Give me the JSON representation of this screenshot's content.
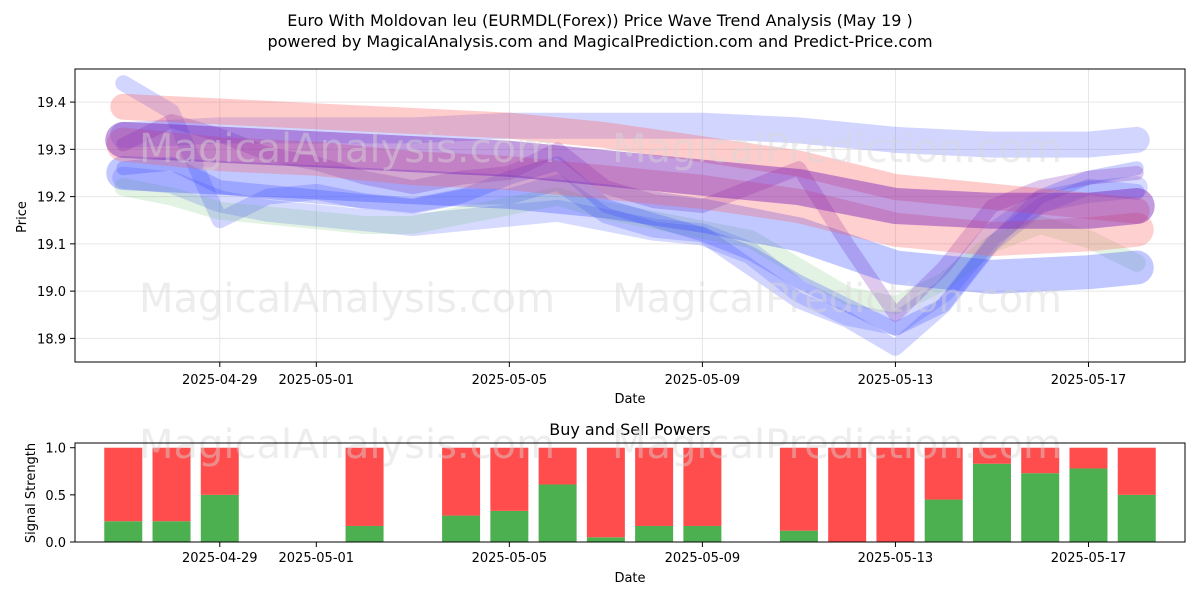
{
  "header": {
    "title": "Euro With Moldovan leu (EURMDL(Forex)) Price Wave Trend Analysis (May 19 )",
    "subtitle": "powered by MagicalAnalysis.com and MagicalPrediction.com and Predict-Price.com"
  },
  "watermarks": [
    "MagicalAnalysis.com",
    "MagicalPrediction.com"
  ],
  "colors": {
    "buy": "#4caf50",
    "sell": "#ff4d4d",
    "wave_blue": "#3344ff",
    "wave_red": "#ff5555",
    "wave_green": "#66bb66",
    "wave_purple": "#7a22b8"
  },
  "chart_data": [
    {
      "type": "line",
      "title": "",
      "xlabel": "Date",
      "ylabel": "Price",
      "x_ticks": [
        "2025-04-29",
        "2025-05-01",
        "2025-05-05",
        "2025-05-09",
        "2025-05-13",
        "2025-05-17"
      ],
      "y_ticks": [
        18.9,
        19.0,
        19.1,
        19.2,
        19.3,
        19.4
      ],
      "xlim": [
        "2025-04-26",
        "2025-05-19"
      ],
      "ylim": [
        18.85,
        19.47
      ],
      "grid": true,
      "series": [
        {
          "color": "blue",
          "width": 16,
          "opacity": 0.22,
          "x": [
            "2025-04-27",
            "2025-04-28",
            "2025-04-29",
            "2025-04-30",
            "2025-05-01",
            "2025-05-02",
            "2025-05-03",
            "2025-05-04",
            "2025-05-05",
            "2025-05-06",
            "2025-05-07",
            "2025-05-08",
            "2025-05-09",
            "2025-05-10",
            "2025-05-11",
            "2025-05-12",
            "2025-05-13",
            "2025-05-14",
            "2025-05-15",
            "2025-05-16",
            "2025-05-17",
            "2025-05-18"
          ],
          "y": [
            19.44,
            19.38,
            19.15,
            19.2,
            19.21,
            19.19,
            19.18,
            19.2,
            19.2,
            19.23,
            19.16,
            19.13,
            19.12,
            19.05,
            18.98,
            18.94,
            18.88,
            18.97,
            19.1,
            19.18,
            19.22,
            19.21
          ]
        },
        {
          "color": "blue",
          "width": 22,
          "opacity": 0.2,
          "x": [
            "2025-04-27",
            "2025-04-28",
            "2025-04-29",
            "2025-04-30",
            "2025-05-01",
            "2025-05-02",
            "2025-05-03",
            "2025-05-04",
            "2025-05-05",
            "2025-05-06",
            "2025-05-07",
            "2025-05-08",
            "2025-05-09",
            "2025-05-10",
            "2025-05-11",
            "2025-05-12",
            "2025-05-13",
            "2025-05-14",
            "2025-05-15",
            "2025-05-16",
            "2025-05-17",
            "2025-05-18"
          ],
          "y": [
            19.24,
            19.23,
            19.19,
            19.17,
            19.16,
            19.15,
            19.14,
            19.15,
            19.16,
            19.17,
            19.15,
            19.13,
            19.12,
            19.08,
            19.0,
            18.95,
            18.93,
            19.0,
            19.12,
            19.19,
            19.21,
            19.22
          ]
        },
        {
          "color": "green",
          "width": 18,
          "opacity": 0.18,
          "x": [
            "2025-04-27",
            "2025-04-28",
            "2025-04-29",
            "2025-04-30",
            "2025-05-01",
            "2025-05-02",
            "2025-05-03",
            "2025-05-04",
            "2025-05-05",
            "2025-05-06",
            "2025-05-07",
            "2025-05-08",
            "2025-05-09",
            "2025-05-10",
            "2025-05-11",
            "2025-05-12",
            "2025-05-13",
            "2025-05-14",
            "2025-05-15",
            "2025-05-16",
            "2025-05-17",
            "2025-05-18"
          ],
          "y": [
            19.22,
            19.2,
            19.17,
            19.16,
            19.15,
            19.14,
            19.14,
            19.16,
            19.18,
            19.2,
            19.17,
            19.15,
            19.13,
            19.11,
            19.05,
            18.99,
            18.97,
            19.02,
            19.1,
            19.14,
            19.11,
            19.06
          ]
        },
        {
          "color": "blue",
          "width": 14,
          "opacity": 0.25,
          "x": [
            "2025-04-27",
            "2025-04-28",
            "2025-04-29",
            "2025-04-30",
            "2025-05-01",
            "2025-05-02",
            "2025-05-03",
            "2025-05-04",
            "2025-05-05",
            "2025-05-06",
            "2025-05-07",
            "2025-05-08",
            "2025-05-09",
            "2025-05-10",
            "2025-05-11",
            "2025-05-12",
            "2025-05-13",
            "2025-05-14",
            "2025-05-15",
            "2025-05-16",
            "2025-05-17",
            "2025-05-18"
          ],
          "y": [
            19.26,
            19.27,
            19.22,
            19.21,
            19.2,
            19.19,
            19.18,
            19.2,
            19.24,
            19.27,
            19.18,
            19.15,
            19.12,
            19.08,
            19.02,
            18.97,
            18.92,
            18.97,
            19.1,
            19.2,
            19.24,
            19.26
          ]
        },
        {
          "color": "purple",
          "width": 14,
          "opacity": 0.25,
          "x": [
            "2025-04-27",
            "2025-04-28",
            "2025-04-29",
            "2025-04-30",
            "2025-05-01",
            "2025-05-02",
            "2025-05-03",
            "2025-05-04",
            "2025-05-05",
            "2025-05-06",
            "2025-05-07",
            "2025-05-08",
            "2025-05-09",
            "2025-05-10",
            "2025-05-11",
            "2025-05-12",
            "2025-05-13",
            "2025-05-14",
            "2025-05-15",
            "2025-05-16",
            "2025-05-17",
            "2025-05-18"
          ],
          "y": [
            19.31,
            19.36,
            19.33,
            19.29,
            19.27,
            19.24,
            19.22,
            19.24,
            19.25,
            19.3,
            19.22,
            19.19,
            19.18,
            19.22,
            19.26,
            19.1,
            18.95,
            19.05,
            19.18,
            19.22,
            19.24,
            19.25
          ]
        },
        {
          "color": "blue",
          "width": 26,
          "opacity": 0.22,
          "x": [
            "2025-04-27",
            "2025-04-29",
            "2025-05-01",
            "2025-05-03",
            "2025-05-05",
            "2025-05-07",
            "2025-05-09",
            "2025-05-11",
            "2025-05-13",
            "2025-05-15",
            "2025-05-17",
            "2025-05-18"
          ],
          "y": [
            19.33,
            19.34,
            19.34,
            19.34,
            19.35,
            19.35,
            19.35,
            19.34,
            19.32,
            19.31,
            19.31,
            19.32
          ]
        },
        {
          "color": "blue",
          "width": 34,
          "opacity": 0.3,
          "x": [
            "2025-04-27",
            "2025-04-29",
            "2025-05-01",
            "2025-05-03",
            "2025-05-05",
            "2025-05-07",
            "2025-05-09",
            "2025-05-11",
            "2025-05-13",
            "2025-05-15",
            "2025-05-17",
            "2025-05-18"
          ],
          "y": [
            19.25,
            19.24,
            19.23,
            19.22,
            19.21,
            19.19,
            19.16,
            19.12,
            19.05,
            19.03,
            19.04,
            19.05
          ]
        },
        {
          "color": "red",
          "width": 26,
          "opacity": 0.3,
          "x": [
            "2025-04-27",
            "2025-04-29",
            "2025-05-01",
            "2025-05-03",
            "2025-05-05",
            "2025-05-07",
            "2025-05-09",
            "2025-05-11",
            "2025-05-13",
            "2025-05-15",
            "2025-05-17",
            "2025-05-18"
          ],
          "y": [
            19.39,
            19.38,
            19.37,
            19.36,
            19.35,
            19.33,
            19.3,
            19.27,
            19.22,
            19.2,
            19.18,
            19.17
          ]
        },
        {
          "color": "red",
          "width": 34,
          "opacity": 0.28,
          "x": [
            "2025-04-27",
            "2025-04-29",
            "2025-05-01",
            "2025-05-03",
            "2025-05-05",
            "2025-05-07",
            "2025-05-09",
            "2025-05-11",
            "2025-05-13",
            "2025-05-15",
            "2025-05-17",
            "2025-05-18"
          ],
          "y": [
            19.31,
            19.29,
            19.28,
            19.26,
            19.25,
            19.23,
            19.21,
            19.18,
            19.13,
            19.11,
            19.12,
            19.13
          ]
        },
        {
          "color": "purple",
          "width": 36,
          "opacity": 0.45,
          "x": [
            "2025-04-27",
            "2025-04-29",
            "2025-05-01",
            "2025-05-03",
            "2025-05-05",
            "2025-05-07",
            "2025-05-09",
            "2025-05-11",
            "2025-05-13",
            "2025-05-15",
            "2025-05-17",
            "2025-05-18"
          ],
          "y": [
            19.32,
            19.31,
            19.3,
            19.29,
            19.28,
            19.26,
            19.24,
            19.22,
            19.18,
            19.17,
            19.17,
            19.18
          ]
        }
      ]
    },
    {
      "type": "bar",
      "title": "Buy and Sell Powers",
      "xlabel": "Date",
      "ylabel": "Signal Strength",
      "x_ticks": [
        "2025-04-29",
        "2025-05-01",
        "2025-05-05",
        "2025-05-09",
        "2025-05-13",
        "2025-05-17"
      ],
      "y_ticks": [
        0.0,
        0.5,
        1.0
      ],
      "ylim": [
        0,
        1.05
      ],
      "categories": [
        "2025-04-27",
        "2025-04-28",
        "2025-04-29",
        "2025-05-02",
        "2025-05-04",
        "2025-05-05",
        "2025-05-06",
        "2025-05-07",
        "2025-05-08",
        "2025-05-09",
        "2025-05-11",
        "2025-05-12",
        "2025-05-13",
        "2025-05-14",
        "2025-05-15",
        "2025-05-16",
        "2025-05-17",
        "2025-05-18"
      ],
      "buy": [
        0.22,
        0.22,
        0.5,
        0.17,
        0.28,
        0.33,
        0.61,
        0.05,
        0.17,
        0.17,
        0.12,
        0.0,
        0.0,
        0.45,
        0.83,
        0.73,
        0.78,
        0.5
      ],
      "sell": [
        0.78,
        0.78,
        0.5,
        0.83,
        0.72,
        0.67,
        0.39,
        0.95,
        0.83,
        0.83,
        0.88,
        1.0,
        1.0,
        0.55,
        0.17,
        0.27,
        0.22,
        0.5
      ]
    }
  ]
}
